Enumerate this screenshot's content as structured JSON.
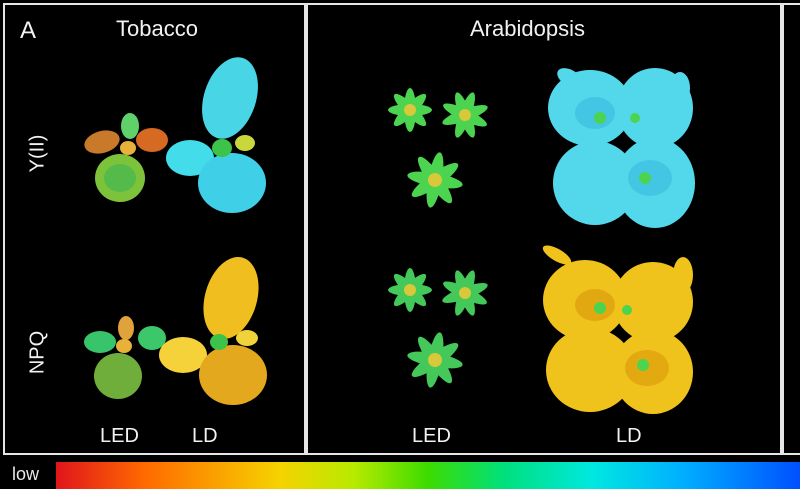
{
  "figure": {
    "panel_letter": "A",
    "titles": {
      "left": "Tobacco",
      "right": "Arabidopsis"
    },
    "row_labels": {
      "top": "Y(II)",
      "bottom": "NPQ"
    },
    "column_labels": [
      "LED",
      "LD",
      "LED",
      "LD"
    ],
    "colorbar": {
      "low_label": "low"
    }
  },
  "colors": {
    "background": "#000000",
    "cyan": "#40d8ea",
    "yellow": "#f0c21c",
    "green": "#39c24a",
    "orange": "#e1741f"
  }
}
